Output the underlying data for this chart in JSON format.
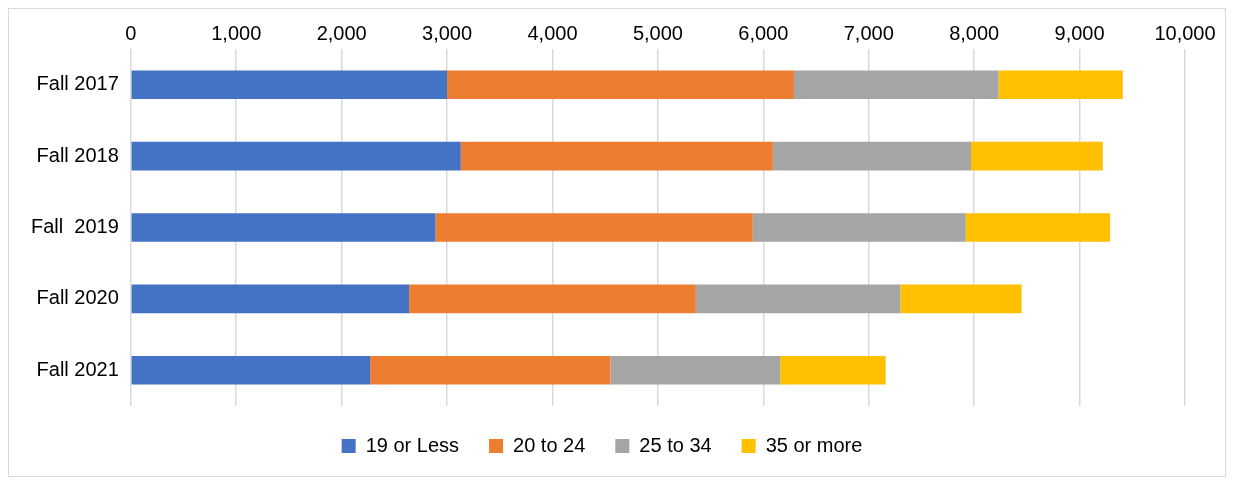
{
  "chart_data": {
    "type": "bar",
    "orientation": "horizontal",
    "stacked": true,
    "categories": [
      "Fall 2017",
      "Fall 2018",
      "Fall  2019",
      "Fall 2020",
      "Fall 2021"
    ],
    "series": [
      {
        "name": "19 or Less",
        "color": "#4472c4",
        "values": [
          3000,
          3130,
          2890,
          2640,
          2270
        ]
      },
      {
        "name": "20 to 24",
        "color": "#ed7d31",
        "values": [
          3290,
          2960,
          3010,
          2720,
          2280
        ]
      },
      {
        "name": "25 to 34",
        "color": "#a5a5a5",
        "values": [
          1940,
          1880,
          2020,
          1940,
          1610
        ]
      },
      {
        "name": "35 or more",
        "color": "#ffc000",
        "values": [
          1180,
          1250,
          1370,
          1150,
          1000
        ]
      }
    ],
    "xlim": [
      0,
      10000
    ],
    "xticks": [
      {
        "value": 0,
        "label": "0"
      },
      {
        "value": 1000,
        "label": "1,000"
      },
      {
        "value": 2000,
        "label": "2,000"
      },
      {
        "value": 3000,
        "label": "3,000"
      },
      {
        "value": 4000,
        "label": "4,000"
      },
      {
        "value": 5000,
        "label": "5,000"
      },
      {
        "value": 6000,
        "label": "6,000"
      },
      {
        "value": 7000,
        "label": "7,000"
      },
      {
        "value": 8000,
        "label": "8,000"
      },
      {
        "value": 9000,
        "label": "9,000"
      },
      {
        "value": 10000,
        "label": "10,000"
      }
    ],
    "grid": "x",
    "legend": "bottom"
  }
}
